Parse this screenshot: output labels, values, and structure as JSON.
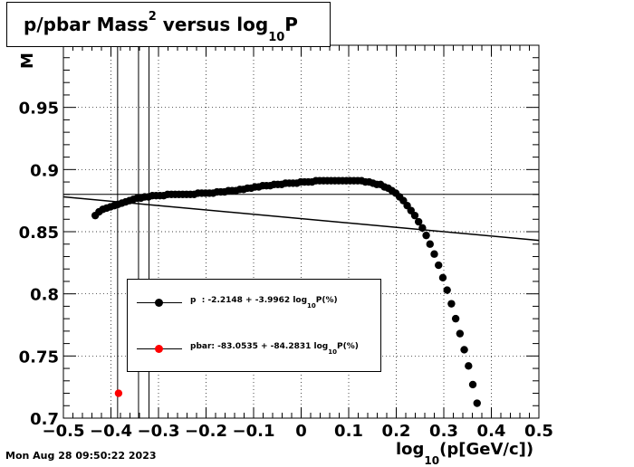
{
  "title": {
    "main": "p/pbar Mass",
    "sup": "2",
    "mid": " versus log",
    "sub": "10",
    "end": "P"
  },
  "x_title": {
    "pre": "log",
    "sub": "10",
    "post": "(p[GeV/c])"
  },
  "y_title": "M",
  "timestamp": "Mon Aug 28 09:50:22 2023",
  "legend": [
    {
      "pre": "p  : -2.2148 + -3.9962 log",
      "sub": "10",
      "post": "P(%)",
      "color": "#000000"
    },
    {
      "pre": "pbar: -83.0535 + -84.2831 log",
      "sub": "10",
      "post": "P(%)",
      "color": "#ff0000"
    }
  ],
  "chart_data": {
    "type": "scatter",
    "xlim": [
      -0.5,
      0.5
    ],
    "ylim": [
      0.7,
      1.0
    ],
    "x_ticks": [
      -0.5,
      -0.4,
      -0.3,
      -0.2,
      -0.1,
      0,
      0.1,
      0.2,
      0.3,
      0.4,
      0.5
    ],
    "x_tick_labels": [
      "−0.5",
      "−0.4",
      "−0.3",
      "−0.2",
      "−0.1",
      "0",
      "0.1",
      "0.2",
      "0.3",
      "0.4",
      "0.5"
    ],
    "y_ticks": [
      0.7,
      0.75,
      0.8,
      0.85,
      0.9,
      0.95
    ],
    "y_tick_labels": [
      "0.7",
      "0.75",
      "0.8",
      "0.85",
      "0.9",
      "0.95"
    ],
    "grid": true,
    "series": [
      {
        "name": "p",
        "color": "#000000",
        "points": [
          [
            -0.433,
            0.863
          ],
          [
            -0.425,
            0.866
          ],
          [
            -0.417,
            0.868
          ],
          [
            -0.409,
            0.869
          ],
          [
            -0.401,
            0.87
          ],
          [
            -0.393,
            0.871
          ],
          [
            -0.385,
            0.872
          ],
          [
            -0.377,
            0.873
          ],
          [
            -0.369,
            0.874
          ],
          [
            -0.361,
            0.875
          ],
          [
            -0.353,
            0.876
          ],
          [
            -0.345,
            0.877
          ],
          [
            -0.337,
            0.877
          ],
          [
            -0.329,
            0.878
          ],
          [
            -0.321,
            0.878
          ],
          [
            -0.313,
            0.879
          ],
          [
            -0.305,
            0.879
          ],
          [
            -0.297,
            0.879
          ],
          [
            -0.289,
            0.879
          ],
          [
            -0.281,
            0.88
          ],
          [
            -0.273,
            0.88
          ],
          [
            -0.265,
            0.88
          ],
          [
            -0.257,
            0.88
          ],
          [
            -0.249,
            0.88
          ],
          [
            -0.241,
            0.88
          ],
          [
            -0.233,
            0.88
          ],
          [
            -0.225,
            0.88
          ],
          [
            -0.217,
            0.881
          ],
          [
            -0.209,
            0.881
          ],
          [
            -0.201,
            0.881
          ],
          [
            -0.193,
            0.881
          ],
          [
            -0.185,
            0.881
          ],
          [
            -0.177,
            0.882
          ],
          [
            -0.169,
            0.882
          ],
          [
            -0.161,
            0.882
          ],
          [
            -0.153,
            0.883
          ],
          [
            -0.145,
            0.883
          ],
          [
            -0.137,
            0.883
          ],
          [
            -0.129,
            0.884
          ],
          [
            -0.121,
            0.884
          ],
          [
            -0.113,
            0.885
          ],
          [
            -0.105,
            0.885
          ],
          [
            -0.097,
            0.886
          ],
          [
            -0.089,
            0.886
          ],
          [
            -0.081,
            0.887
          ],
          [
            -0.073,
            0.887
          ],
          [
            -0.065,
            0.887
          ],
          [
            -0.057,
            0.888
          ],
          [
            -0.049,
            0.888
          ],
          [
            -0.041,
            0.888
          ],
          [
            -0.033,
            0.889
          ],
          [
            -0.025,
            0.889
          ],
          [
            -0.017,
            0.889
          ],
          [
            -0.009,
            0.889
          ],
          [
            -0.001,
            0.89
          ],
          [
            0.007,
            0.89
          ],
          [
            0.015,
            0.89
          ],
          [
            0.023,
            0.89
          ],
          [
            0.031,
            0.891
          ],
          [
            0.039,
            0.891
          ],
          [
            0.047,
            0.891
          ],
          [
            0.055,
            0.891
          ],
          [
            0.063,
            0.891
          ],
          [
            0.071,
            0.891
          ],
          [
            0.079,
            0.891
          ],
          [
            0.087,
            0.891
          ],
          [
            0.095,
            0.891
          ],
          [
            0.103,
            0.891
          ],
          [
            0.111,
            0.891
          ],
          [
            0.119,
            0.891
          ],
          [
            0.127,
            0.891
          ],
          [
            0.135,
            0.89
          ],
          [
            0.143,
            0.89
          ],
          [
            0.151,
            0.889
          ],
          [
            0.159,
            0.888
          ],
          [
            0.167,
            0.888
          ],
          [
            0.175,
            0.886
          ],
          [
            0.183,
            0.885
          ],
          [
            0.191,
            0.883
          ],
          [
            0.199,
            0.881
          ],
          [
            0.207,
            0.878
          ],
          [
            0.215,
            0.875
          ],
          [
            0.223,
            0.871
          ],
          [
            0.231,
            0.867
          ],
          [
            0.239,
            0.863
          ],
          [
            0.247,
            0.858
          ],
          [
            0.255,
            0.853
          ],
          [
            0.263,
            0.847
          ],
          [
            0.271,
            0.84
          ],
          [
            0.28,
            0.832
          ],
          [
            0.289,
            0.823
          ],
          [
            0.298,
            0.813
          ],
          [
            0.307,
            0.803
          ],
          [
            0.316,
            0.792
          ],
          [
            0.325,
            0.78
          ],
          [
            0.334,
            0.768
          ],
          [
            0.343,
            0.755
          ],
          [
            0.352,
            0.742
          ],
          [
            0.361,
            0.727
          ],
          [
            0.37,
            0.712
          ]
        ]
      },
      {
        "name": "pbar",
        "color": "#ff0000",
        "points": [
          [
            -0.384,
            0.72
          ]
        ]
      }
    ],
    "fit_lines": [
      {
        "x": [
          -0.5,
          0.5
        ],
        "y": [
          0.878,
          0.843
        ]
      }
    ],
    "horizontal_lines": [
      0.88
    ],
    "vertical_lines": [
      -0.386,
      -0.342,
      -0.32
    ]
  }
}
